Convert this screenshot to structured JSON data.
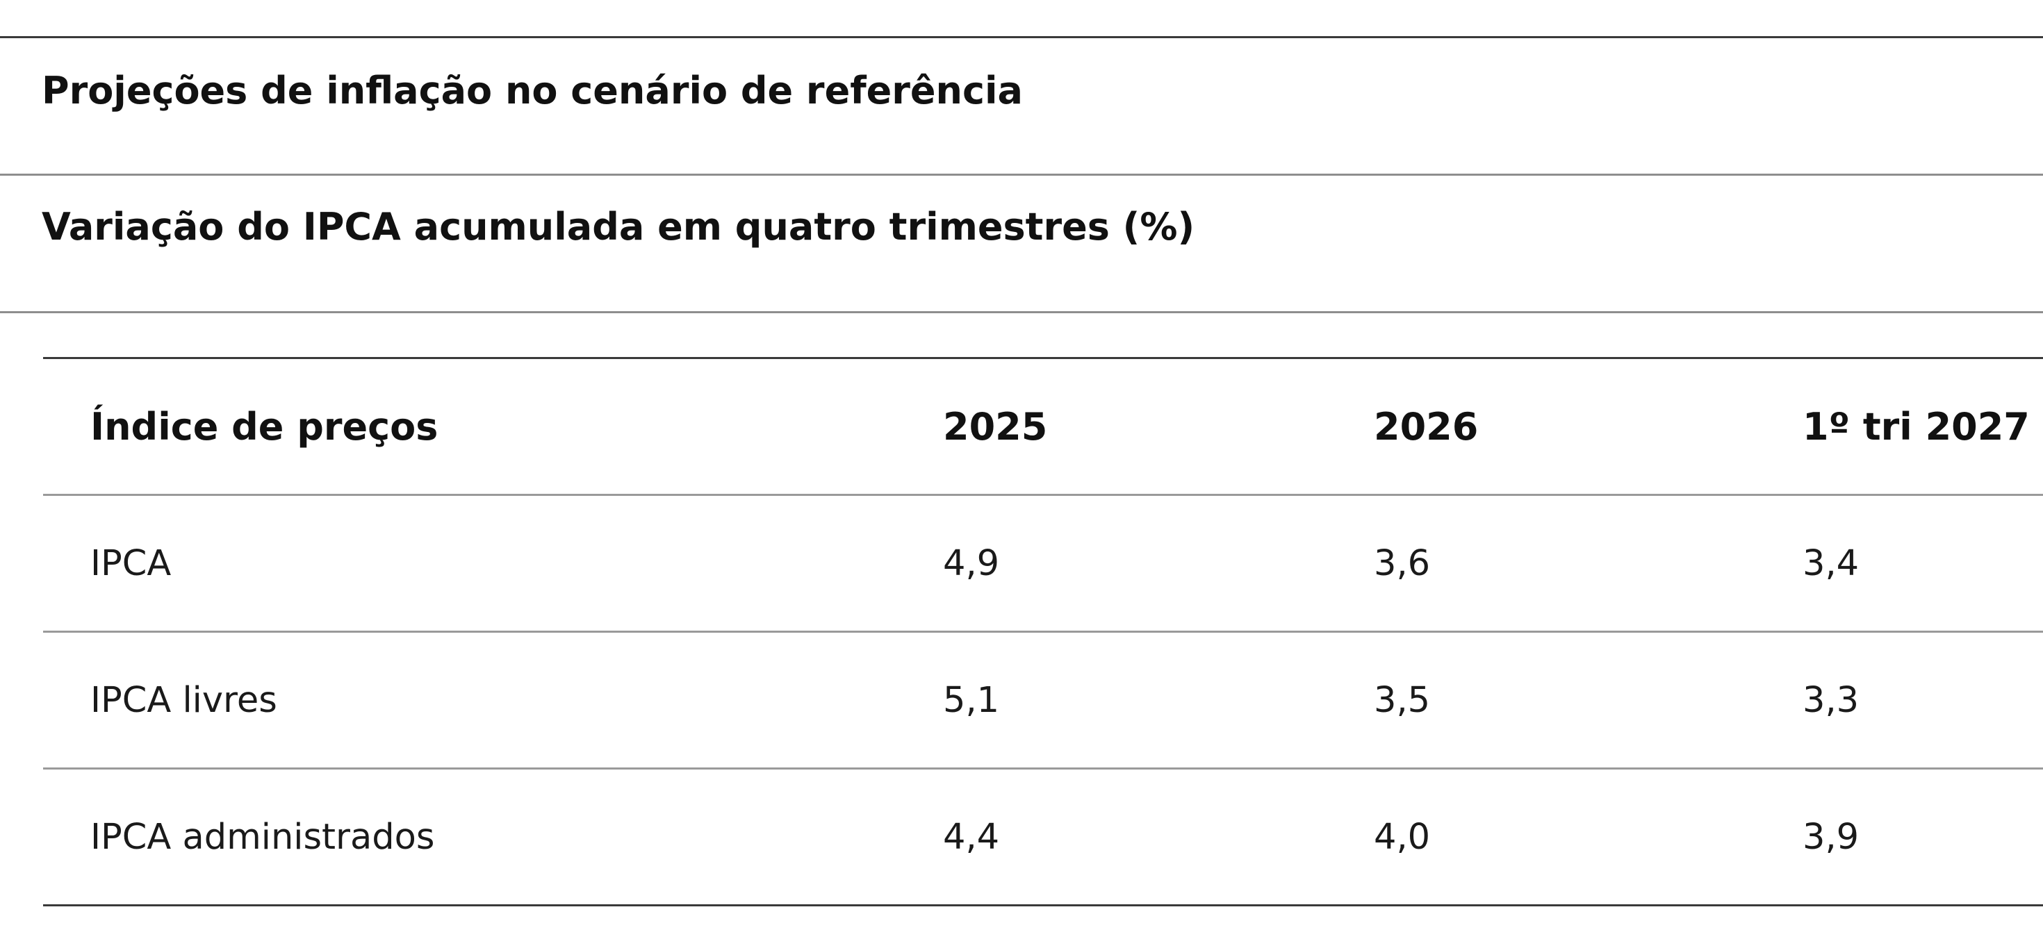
{
  "title": "Projeções de inflação no cenário de referência",
  "subtitle": "Variação do IPCA acumulada em quatro trimestres (%)",
  "table": {
    "headers": [
      "Índice de preços",
      "2025",
      "2026",
      "1º tri 2027"
    ],
    "rows": [
      [
        "IPCA",
        "4,9",
        "3,6",
        "3,4"
      ],
      [
        "IPCA livres",
        "5,1",
        "3,5",
        "3,3"
      ],
      [
        "IPCA administrados",
        "4,4",
        "4,0",
        "3,9"
      ]
    ]
  }
}
